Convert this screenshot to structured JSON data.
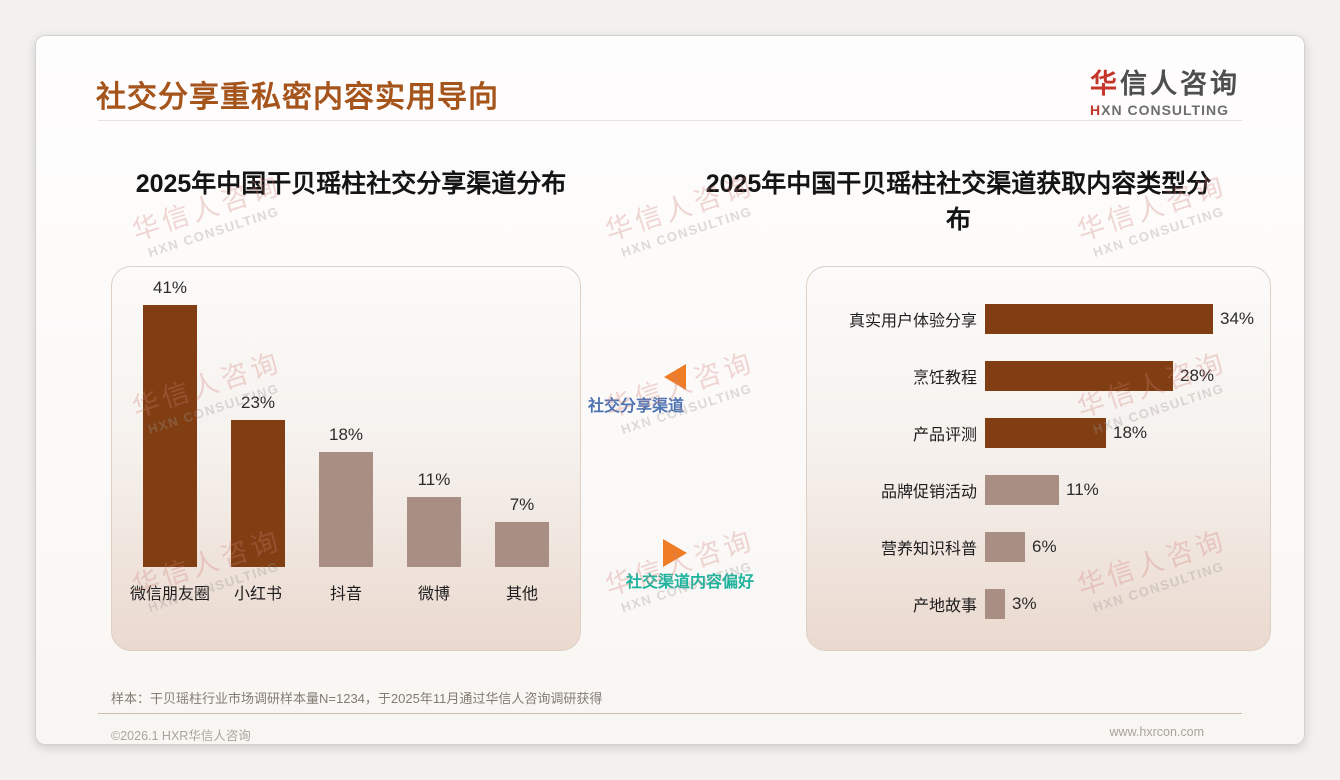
{
  "page": {
    "title": "社交分享重私密内容实用导向",
    "logo": {
      "zh_accent": "华",
      "zh_rest": "信人咨询",
      "en_accent": "H",
      "en_rest": "XN CONSULTING"
    },
    "watermark": {
      "zh": "华信人咨询",
      "en": "HXN CONSULTING"
    },
    "footer": {
      "sample_note": "样本：干贝瑶柱行业市场调研样本量N=1234，于2025年11月通过华信人咨询调研获得",
      "copyright": "©2026.1 HXR华信人咨询",
      "website": "www.hxrcon.com"
    }
  },
  "connector": {
    "left_label": "社交分享渠道",
    "right_label": "社交渠道内容偏好"
  },
  "colors": {
    "title_brown": "#a5541b",
    "bar_dark_brown": "#803e12",
    "bar_light_mauve": "#a98e84",
    "arrow_orange": "#ee7d26",
    "label_blue": "#4f74b3",
    "label_teal": "#1fb39e",
    "logo_red": "#c5352b"
  },
  "chart_data": [
    {
      "type": "bar",
      "orientation": "vertical",
      "title": "2025年中国干贝瑶柱社交分享渠道分布",
      "categories": [
        "微信朋友圈",
        "小红书",
        "抖音",
        "微博",
        "其他"
      ],
      "values": [
        41,
        23,
        18,
        11,
        7
      ],
      "unit": "%",
      "bar_colors": [
        "#803e12",
        "#803e12",
        "#a98e84",
        "#a98e84",
        "#a98e84"
      ],
      "ylim": [
        0,
        45
      ],
      "grid": false,
      "value_labels": "above",
      "legend": "none"
    },
    {
      "type": "bar",
      "orientation": "horizontal",
      "title": "2025年中国干贝瑶柱社交渠道获取内容类型分布",
      "categories": [
        "真实用户体验分享",
        "烹饪教程",
        "产品评测",
        "品牌促销活动",
        "营养知识科普",
        "产地故事"
      ],
      "values": [
        34,
        28,
        18,
        11,
        6,
        3
      ],
      "unit": "%",
      "bar_colors": [
        "#803e12",
        "#803e12",
        "#803e12",
        "#a98e84",
        "#a98e84",
        "#a98e84"
      ],
      "xlim": [
        0,
        40
      ],
      "grid": false,
      "value_labels": "right",
      "legend": "none"
    }
  ]
}
